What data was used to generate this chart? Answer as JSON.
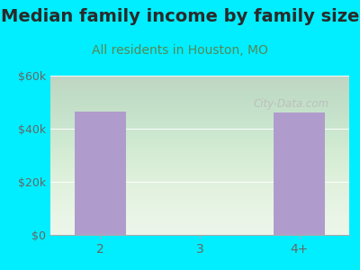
{
  "title": "Median family income by family size",
  "subtitle": "All residents in Houston, MO",
  "categories": [
    "2",
    "3",
    "4+"
  ],
  "values": [
    46500,
    0,
    46000
  ],
  "bar_color": "#b09ccc",
  "background_outer": "#00eeff",
  "ylim": [
    0,
    60000
  ],
  "yticks": [
    0,
    20000,
    40000,
    60000
  ],
  "ytick_labels": [
    "$0",
    "$20k",
    "$40k",
    "$60k"
  ],
  "title_fontsize": 14,
  "subtitle_fontsize": 10,
  "title_color": "#2a2a2a",
  "subtitle_color": "#558855",
  "tick_label_color": "#666666",
  "watermark": "City-Data.com",
  "plot_bg_color": "#eaf5e8"
}
